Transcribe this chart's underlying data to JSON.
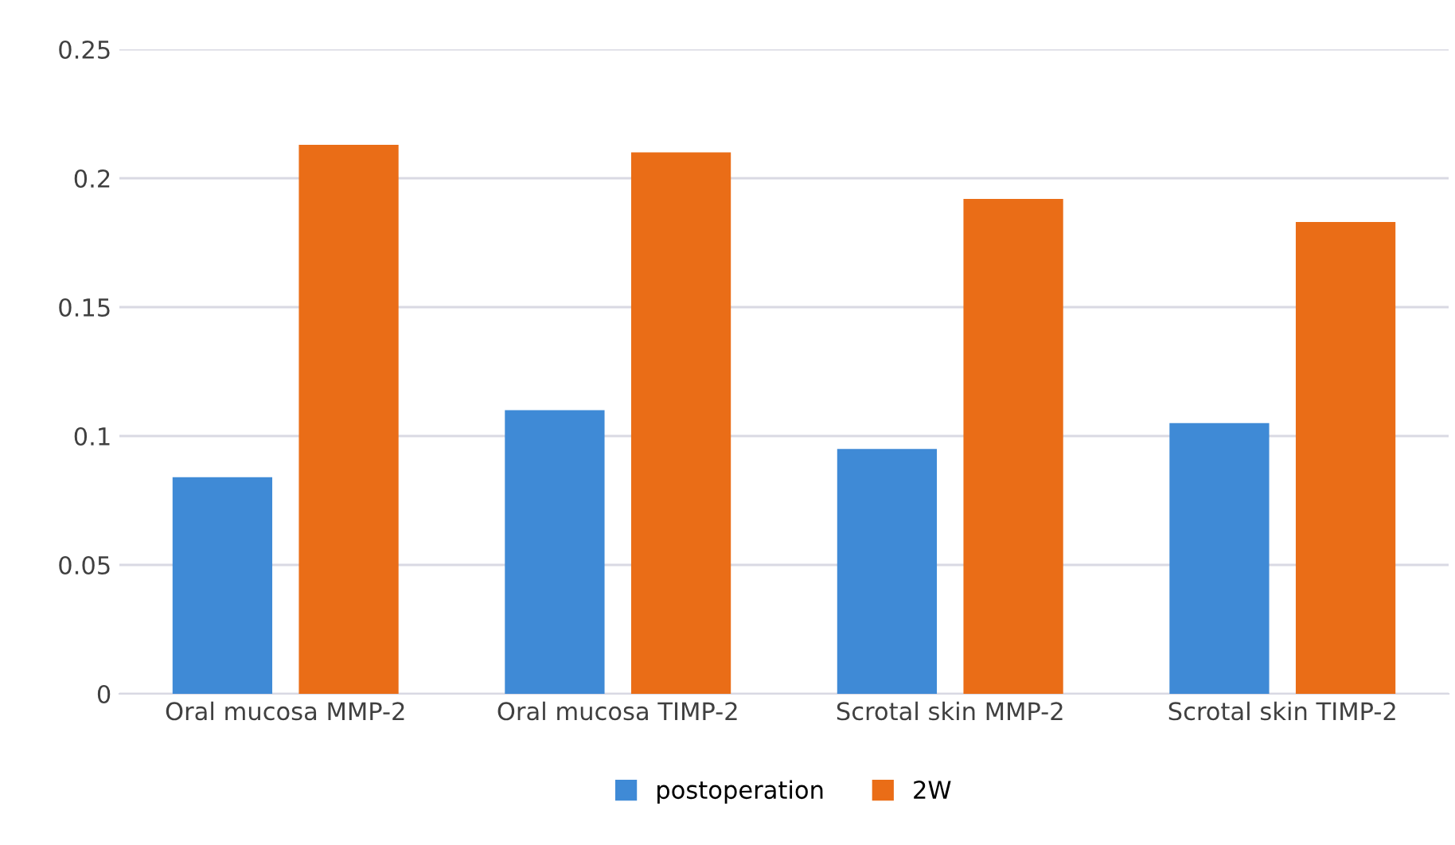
{
  "chart_data": {
    "type": "bar",
    "categories": [
      "Oral mucosa MMP-2",
      "Oral mucosa TIMP-2",
      "Scrotal skin MMP-2",
      "Scrotal skin TIMP-2"
    ],
    "series": [
      {
        "name": "postoperation",
        "color": "#3f8ad6",
        "values": [
          0.084,
          0.11,
          0.095,
          0.105
        ]
      },
      {
        "name": "2W",
        "color": "#ea6d17",
        "values": [
          0.213,
          0.21,
          0.192,
          0.183
        ]
      }
    ],
    "ylim": [
      0,
      0.25
    ],
    "yticks": [
      0,
      0.05,
      0.1,
      0.15,
      0.2,
      0.25
    ],
    "grid": "y",
    "legend": "bottom"
  }
}
